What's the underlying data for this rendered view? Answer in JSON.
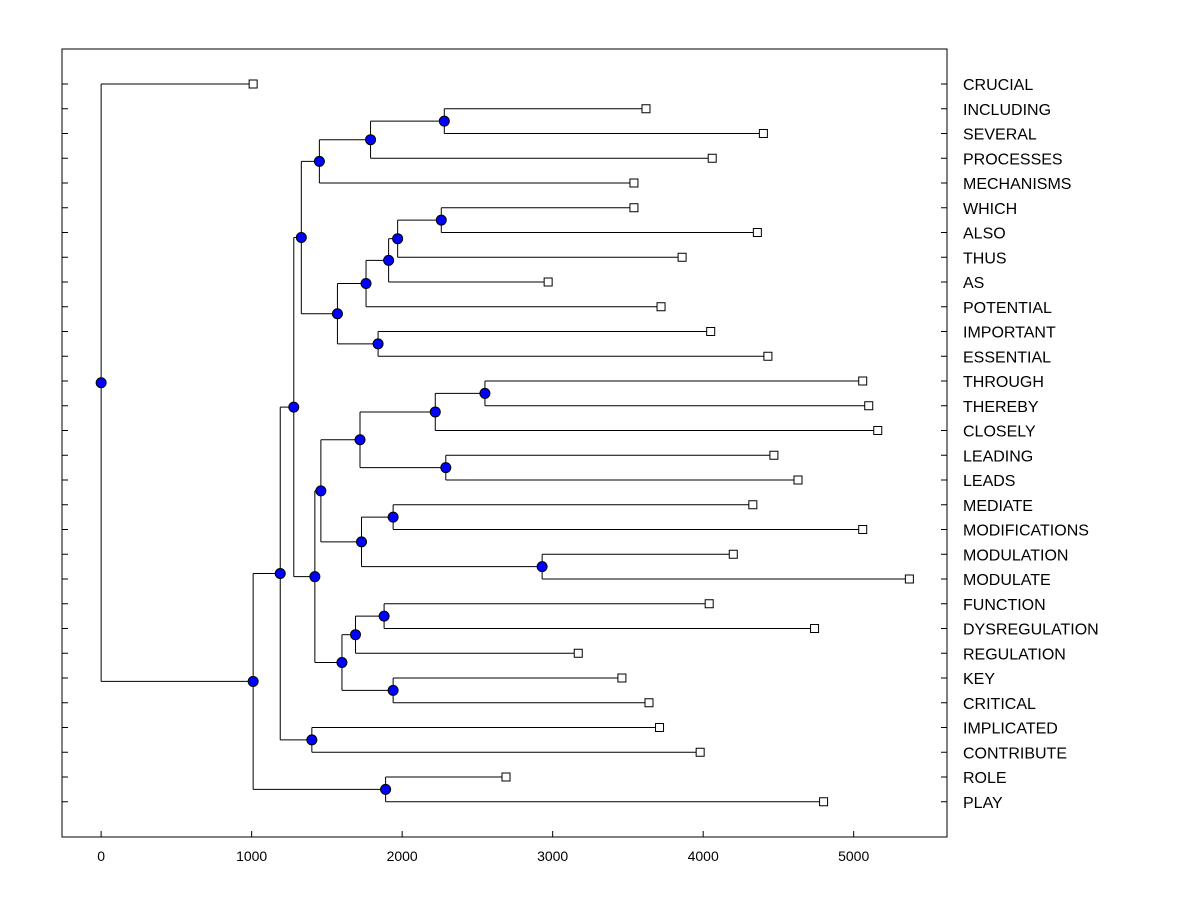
{
  "chart_data": {
    "type": "dendrogram",
    "title": "",
    "xlabel": "",
    "ylabel": "",
    "xlim": [
      -260,
      5620
    ],
    "xticks": [
      0,
      1000,
      2000,
      3000,
      4000,
      5000
    ],
    "xtick_labels": [
      "0",
      "1000",
      "2000",
      "3000",
      "4000",
      "5000"
    ],
    "leaves": [
      {
        "name": "CRUCIAL",
        "value": 1010
      },
      {
        "name": "INCLUDING",
        "value": 3620
      },
      {
        "name": "SEVERAL",
        "value": 4400
      },
      {
        "name": "PROCESSES",
        "value": 4060
      },
      {
        "name": "MECHANISMS",
        "value": 3540
      },
      {
        "name": "WHICH",
        "value": 3540
      },
      {
        "name": "ALSO",
        "value": 4360
      },
      {
        "name": "THUS",
        "value": 3860
      },
      {
        "name": "AS",
        "value": 2970
      },
      {
        "name": "POTENTIAL",
        "value": 3720
      },
      {
        "name": "IMPORTANT",
        "value": 4050
      },
      {
        "name": "ESSENTIAL",
        "value": 4430
      },
      {
        "name": "THROUGH",
        "value": 5060
      },
      {
        "name": "THEREBY",
        "value": 5100
      },
      {
        "name": "CLOSELY",
        "value": 5160
      },
      {
        "name": "LEADING",
        "value": 4470
      },
      {
        "name": "LEADS",
        "value": 4630
      },
      {
        "name": "MEDIATE",
        "value": 4330
      },
      {
        "name": "MODIFICATIONS",
        "value": 5060
      },
      {
        "name": "MODULATION",
        "value": 4200
      },
      {
        "name": "MODULATE",
        "value": 5370
      },
      {
        "name": "FUNCTION",
        "value": 4040
      },
      {
        "name": "DYSREGULATION",
        "value": 4740
      },
      {
        "name": "REGULATION",
        "value": 3170
      },
      {
        "name": "KEY",
        "value": 3460
      },
      {
        "name": "CRITICAL",
        "value": 3640
      },
      {
        "name": "IMPLICATED",
        "value": 3710
      },
      {
        "name": "CONTRIBUTE",
        "value": 3980
      },
      {
        "name": "ROLE",
        "value": 2690
      },
      {
        "name": "PLAY",
        "value": 4800
      }
    ],
    "merges": [
      {
        "id": "n1",
        "value": 2280,
        "children": [
          "INCLUDING",
          "SEVERAL"
        ]
      },
      {
        "id": "n2",
        "value": 1790,
        "children": [
          "n1",
          "PROCESSES"
        ]
      },
      {
        "id": "n3",
        "value": 1450,
        "children": [
          "n2",
          "MECHANISMS"
        ]
      },
      {
        "id": "n4",
        "value": 2260,
        "children": [
          "WHICH",
          "ALSO"
        ]
      },
      {
        "id": "n5",
        "value": 1970,
        "children": [
          "n4",
          "THUS"
        ]
      },
      {
        "id": "n6",
        "value": 1910,
        "children": [
          "n5",
          "AS"
        ]
      },
      {
        "id": "n7",
        "value": 1760,
        "children": [
          "n6",
          "POTENTIAL"
        ]
      },
      {
        "id": "n8",
        "value": 1840,
        "children": [
          "IMPORTANT",
          "ESSENTIAL"
        ]
      },
      {
        "id": "n9",
        "value": 1570,
        "children": [
          "n7",
          "n8"
        ]
      },
      {
        "id": "n10",
        "value": 1330,
        "children": [
          "n3",
          "n9"
        ]
      },
      {
        "id": "n11",
        "value": 2550,
        "children": [
          "THROUGH",
          "THEREBY"
        ]
      },
      {
        "id": "n12",
        "value": 2220,
        "children": [
          "n11",
          "CLOSELY"
        ]
      },
      {
        "id": "n13",
        "value": 2290,
        "children": [
          "LEADING",
          "LEADS"
        ]
      },
      {
        "id": "n14",
        "value": 1720,
        "children": [
          "n12",
          "n13"
        ]
      },
      {
        "id": "n15",
        "value": 1940,
        "children": [
          "MEDIATE",
          "MODIFICATIONS"
        ]
      },
      {
        "id": "n16",
        "value": 2930,
        "children": [
          "MODULATION",
          "MODULATE"
        ]
      },
      {
        "id": "n17",
        "value": 1730,
        "children": [
          "n15",
          "n16"
        ]
      },
      {
        "id": "n18",
        "value": 1460,
        "children": [
          "n14",
          "n17"
        ]
      },
      {
        "id": "n19",
        "value": 1880,
        "children": [
          "FUNCTION",
          "DYSREGULATION"
        ]
      },
      {
        "id": "n20",
        "value": 1690,
        "children": [
          "n19",
          "REGULATION"
        ]
      },
      {
        "id": "n21",
        "value": 1940,
        "children": [
          "KEY",
          "CRITICAL"
        ]
      },
      {
        "id": "n22",
        "value": 1600,
        "children": [
          "n20",
          "n21"
        ]
      },
      {
        "id": "n23",
        "value": 1420,
        "children": [
          "n18",
          "n22"
        ]
      },
      {
        "id": "n24",
        "value": 1280,
        "children": [
          "n10",
          "n23"
        ]
      },
      {
        "id": "n25",
        "value": 1400,
        "children": [
          "IMPLICATED",
          "CONTRIBUTE"
        ]
      },
      {
        "id": "n26",
        "value": 1190,
        "children": [
          "n24",
          "n25"
        ]
      },
      {
        "id": "n27",
        "value": 1890,
        "children": [
          "ROLE",
          "PLAY"
        ]
      },
      {
        "id": "n28",
        "value": 1010,
        "children": [
          "n26",
          "n27"
        ]
      },
      {
        "id": "root",
        "value": 0,
        "children": [
          "CRUCIAL",
          "n28"
        ]
      }
    ],
    "colors": {
      "internal_node": "#0000ff",
      "leaf_node": "#ffffff",
      "line": "#000000"
    }
  }
}
